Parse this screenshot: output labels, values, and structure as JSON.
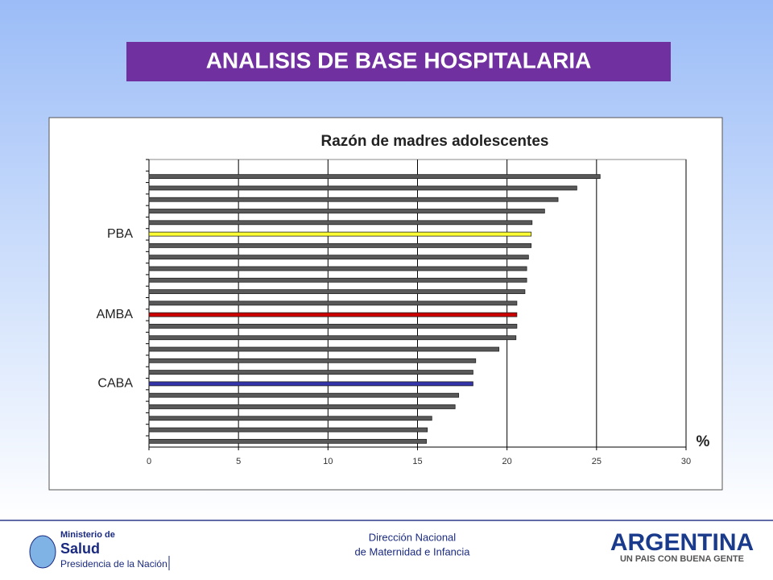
{
  "slide_title": "ANALISIS DE BASE HOSPITALARIA",
  "footer": {
    "line1": "Dirección Nacional",
    "line2": "de Maternidad e Infancia"
  },
  "logo_left": {
    "line1": "Ministerio de",
    "line2": "Salud",
    "line3": "Presidencia de la Nación"
  },
  "logo_right": {
    "line1": "ARGENTINA",
    "line2": "UN PAIS CON BUENA GENTE"
  },
  "chart_data": {
    "type": "hbar",
    "title": "Razón  de madres adolescentes",
    "x_label": "%",
    "categories": [
      null,
      null,
      null,
      null,
      null,
      "PBA",
      null,
      null,
      null,
      null,
      null,
      null,
      "AMBA",
      null,
      null,
      null,
      null,
      null,
      "CABA",
      null,
      null,
      null,
      null,
      null
    ],
    "values": [
      25.2,
      23.9,
      22.85,
      22.1,
      21.4,
      21.35,
      21.35,
      21.2,
      21.1,
      21.1,
      21.0,
      20.55,
      20.55,
      20.55,
      20.5,
      19.55,
      18.25,
      18.1,
      18.1,
      17.3,
      17.1,
      15.8,
      15.55,
      15.5
    ],
    "colors": [
      "#595959",
      "#595959",
      "#595959",
      "#595959",
      "#595959",
      "#ffff33",
      "#595959",
      "#595959",
      "#595959",
      "#595959",
      "#595959",
      "#595959",
      "#cc0000",
      "#595959",
      "#595959",
      "#595959",
      "#595959",
      "#595959",
      "#3333aa",
      "#595959",
      "#595959",
      "#595959",
      "#595959",
      "#595959"
    ],
    "xlim": [
      0,
      30
    ],
    "xticks": [
      0,
      5,
      10,
      15,
      20,
      25,
      30
    ],
    "grid": true
  }
}
